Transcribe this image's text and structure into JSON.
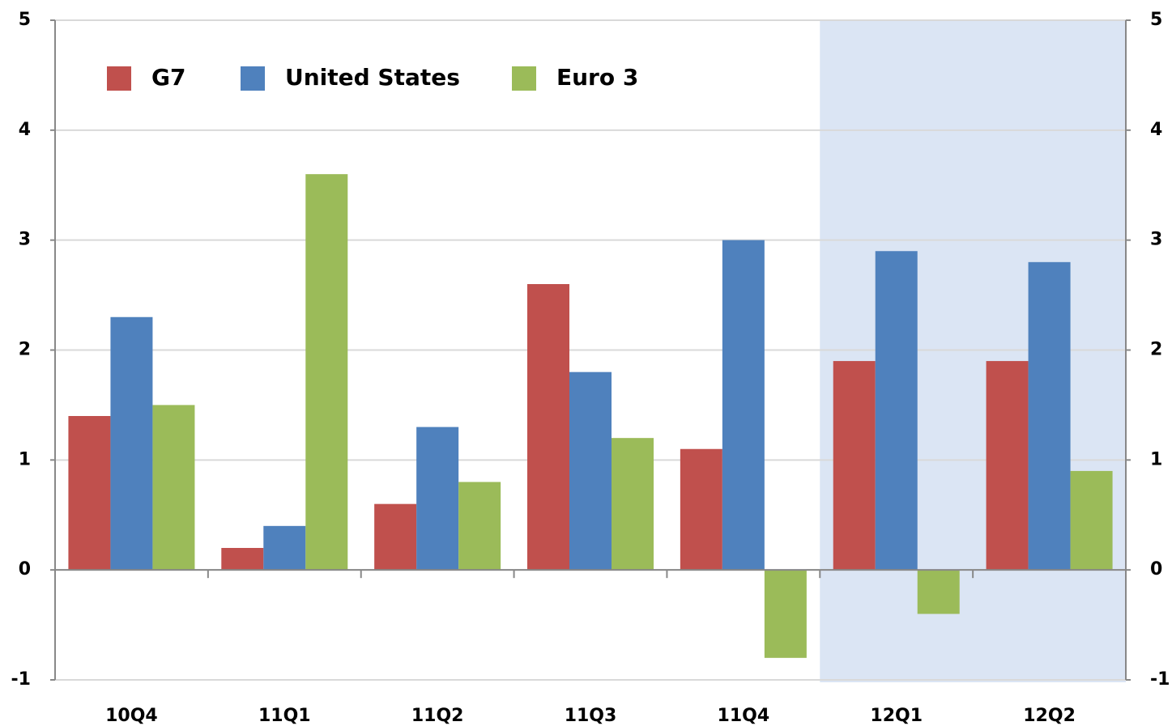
{
  "chart_data": {
    "type": "bar",
    "categories": [
      "10Q4",
      "11Q1",
      "11Q2",
      "11Q3",
      "11Q4",
      "12Q1",
      "12Q2"
    ],
    "series": [
      {
        "name": "G7",
        "color": "#c0504d",
        "values": [
          1.4,
          0.2,
          0.6,
          2.6,
          1.1,
          1.9,
          1.9
        ]
      },
      {
        "name": "United States",
        "color": "#4f81bd",
        "values": [
          2.3,
          0.4,
          1.3,
          1.8,
          3.0,
          2.9,
          2.8
        ]
      },
      {
        "name": "Euro 3",
        "color": "#9bbb59",
        "values": [
          1.5,
          3.6,
          0.8,
          1.2,
          -0.8,
          -0.4,
          0.9
        ]
      }
    ],
    "ylim": [
      -1,
      5
    ],
    "yticks": [
      -1,
      0,
      1,
      2,
      3,
      4,
      5
    ],
    "y2lim": [
      -1,
      5
    ],
    "y2ticks": [
      -1,
      0,
      1,
      2,
      3,
      4,
      5
    ],
    "grid": true,
    "legend": "top-left",
    "highlight": {
      "from": 5,
      "color": "#dbe5f4"
    }
  }
}
